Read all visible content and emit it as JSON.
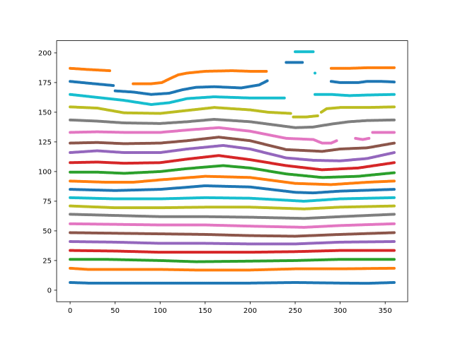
{
  "chart_data": {
    "type": "scatter",
    "title": "",
    "xlabel": "",
    "ylabel": "",
    "xlim": [
      -15,
      375
    ],
    "ylim": [
      -9.7,
      210.3
    ],
    "xticks": [
      0,
      50,
      100,
      150,
      200,
      250,
      300,
      350
    ],
    "xtick_labels": [
      "0",
      "50",
      "100",
      "150",
      "200",
      "250",
      "300",
      "350"
    ],
    "yticks": [
      0,
      25,
      50,
      75,
      100,
      125,
      150,
      175,
      200
    ],
    "ytick_labels": [
      "0",
      "25",
      "50",
      "75",
      "100",
      "125",
      "150",
      "175",
      "200"
    ],
    "grid": false,
    "legend": false,
    "series": [
      {
        "color": "#1f77b4",
        "points": [
          [
            0,
            6.5
          ],
          [
            20,
            6
          ],
          [
            50,
            6
          ],
          [
            100,
            6
          ],
          [
            150,
            6
          ],
          [
            200,
            6
          ],
          [
            250,
            6.5
          ],
          [
            300,
            6
          ],
          [
            330,
            5.8
          ],
          [
            360,
            6.5
          ]
        ]
      },
      {
        "color": "#ff7f0e",
        "points": [
          [
            0,
            18.5
          ],
          [
            20,
            17.5
          ],
          [
            50,
            17.5
          ],
          [
            100,
            17.5
          ],
          [
            140,
            17
          ],
          [
            200,
            17
          ],
          [
            250,
            18
          ],
          [
            300,
            18
          ],
          [
            360,
            18.5
          ]
        ]
      },
      {
        "color": "#2ca02c",
        "points": [
          [
            0,
            26
          ],
          [
            40,
            26
          ],
          [
            100,
            25
          ],
          [
            140,
            24
          ],
          [
            200,
            24.5
          ],
          [
            250,
            25
          ],
          [
            300,
            26
          ],
          [
            360,
            26
          ]
        ]
      },
      {
        "color": "#d62728",
        "points": [
          [
            0,
            33.5
          ],
          [
            50,
            33
          ],
          [
            100,
            32
          ],
          [
            150,
            32
          ],
          [
            200,
            32
          ],
          [
            250,
            32.5
          ],
          [
            300,
            33.5
          ],
          [
            360,
            33.5
          ]
        ]
      },
      {
        "color": "#9467bd",
        "points": [
          [
            0,
            41
          ],
          [
            50,
            40.5
          ],
          [
            100,
            39.5
          ],
          [
            150,
            39.5
          ],
          [
            200,
            39
          ],
          [
            250,
            39
          ],
          [
            300,
            40.5
          ],
          [
            360,
            41
          ]
        ]
      },
      {
        "color": "#8c564b",
        "points": [
          [
            0,
            48.5
          ],
          [
            50,
            48
          ],
          [
            100,
            47.5
          ],
          [
            150,
            47
          ],
          [
            200,
            46
          ],
          [
            250,
            45.5
          ],
          [
            300,
            47
          ],
          [
            360,
            48.5
          ]
        ]
      },
      {
        "color": "#e377c2",
        "points": [
          [
            0,
            56
          ],
          [
            50,
            55.5
          ],
          [
            100,
            55
          ],
          [
            150,
            55
          ],
          [
            200,
            54
          ],
          [
            260,
            53
          ],
          [
            300,
            54.5
          ],
          [
            360,
            56
          ]
        ]
      },
      {
        "color": "#7f7f7f",
        "points": [
          [
            0,
            64
          ],
          [
            50,
            63
          ],
          [
            100,
            62
          ],
          [
            150,
            62
          ],
          [
            200,
            61.5
          ],
          [
            260,
            60.5
          ],
          [
            300,
            62
          ],
          [
            360,
            64
          ]
        ]
      },
      {
        "color": "#bcbd22",
        "points": [
          [
            0,
            71
          ],
          [
            50,
            69.5
          ],
          [
            100,
            69.5
          ],
          [
            150,
            70
          ],
          [
            200,
            70
          ],
          [
            260,
            68.5
          ],
          [
            300,
            70
          ],
          [
            360,
            71
          ]
        ]
      },
      {
        "color": "#17becf",
        "points": [
          [
            0,
            78
          ],
          [
            50,
            77
          ],
          [
            100,
            77
          ],
          [
            150,
            78
          ],
          [
            200,
            77.5
          ],
          [
            260,
            75
          ],
          [
            300,
            77
          ],
          [
            360,
            78
          ]
        ]
      },
      {
        "color": "#1f77b4",
        "points": [
          [
            0,
            85
          ],
          [
            50,
            84
          ],
          [
            100,
            85
          ],
          [
            150,
            88
          ],
          [
            200,
            87
          ],
          [
            250,
            82.5
          ],
          [
            270,
            82
          ],
          [
            300,
            83.5
          ],
          [
            360,
            85
          ]
        ]
      },
      {
        "color": "#ff7f0e",
        "points": [
          [
            0,
            92
          ],
          [
            40,
            91
          ],
          [
            70,
            91
          ],
          [
            100,
            93
          ],
          [
            150,
            96
          ],
          [
            200,
            95
          ],
          [
            250,
            90
          ],
          [
            290,
            89
          ],
          [
            330,
            91
          ],
          [
            360,
            92
          ]
        ]
      },
      {
        "color": "#2ca02c",
        "points": [
          [
            0,
            99.5
          ],
          [
            30,
            99.5
          ],
          [
            60,
            98.5
          ],
          [
            100,
            100
          ],
          [
            130,
            102.5
          ],
          [
            170,
            105
          ],
          [
            200,
            103
          ],
          [
            240,
            98
          ],
          [
            280,
            95
          ],
          [
            320,
            96
          ],
          [
            360,
            99
          ]
        ]
      },
      {
        "color": "#d62728",
        "points": [
          [
            0,
            107.5
          ],
          [
            30,
            108
          ],
          [
            60,
            107
          ],
          [
            100,
            107.5
          ],
          [
            130,
            110.5
          ],
          [
            165,
            113.5
          ],
          [
            200,
            110
          ],
          [
            240,
            105
          ],
          [
            280,
            101.5
          ],
          [
            320,
            103
          ],
          [
            360,
            107.5
          ]
        ]
      },
      {
        "color": "#9467bd",
        "points": [
          [
            0,
            116
          ],
          [
            30,
            117.5
          ],
          [
            60,
            116
          ],
          [
            100,
            116
          ],
          [
            130,
            119
          ],
          [
            170,
            122
          ],
          [
            200,
            119
          ],
          [
            240,
            111.5
          ],
          [
            270,
            109.5
          ],
          [
            300,
            109
          ],
          [
            330,
            111
          ],
          [
            360,
            116
          ]
        ]
      },
      {
        "color": "#8c564b",
        "points": [
          [
            0,
            124
          ],
          [
            30,
            124.5
          ],
          [
            60,
            123.5
          ],
          [
            100,
            124
          ],
          [
            130,
            126
          ],
          [
            165,
            129
          ],
          [
            200,
            126
          ],
          [
            240,
            118.5
          ],
          [
            280,
            117
          ],
          [
            300,
            119
          ],
          [
            330,
            120
          ],
          [
            360,
            124
          ]
        ]
      },
      {
        "color": "#e377c2",
        "points": [
          [
            0,
            133
          ],
          [
            30,
            133.5
          ],
          [
            60,
            133
          ],
          [
            100,
            133
          ],
          [
            130,
            135
          ],
          [
            165,
            137
          ],
          [
            200,
            134
          ],
          [
            240,
            128
          ],
          [
            270,
            127
          ],
          [
            280,
            124
          ],
          [
            290,
            124
          ],
          [
            296,
            126
          ]
        ]
      },
      {
        "color": "#e377c2",
        "points": [
          [
            317,
            128
          ],
          [
            325,
            127
          ],
          [
            332,
            128
          ]
        ]
      },
      {
        "color": "#e377c2",
        "points": [
          [
            336,
            133
          ],
          [
            350,
            133
          ],
          [
            360,
            133
          ]
        ]
      },
      {
        "color": "#7f7f7f",
        "points": [
          [
            0,
            143.5
          ],
          [
            30,
            142.5
          ],
          [
            60,
            141
          ],
          [
            100,
            140.5
          ],
          [
            130,
            142
          ],
          [
            160,
            144
          ],
          [
            200,
            142
          ],
          [
            230,
            139
          ],
          [
            250,
            137
          ],
          [
            270,
            137.5
          ],
          [
            290,
            140
          ],
          [
            310,
            142
          ],
          [
            330,
            143
          ],
          [
            360,
            143.5
          ]
        ]
      },
      {
        "color": "#bcbd22",
        "points": [
          [
            0,
            154.5
          ],
          [
            30,
            153.5
          ],
          [
            60,
            149.5
          ],
          [
            100,
            149
          ],
          [
            130,
            151.5
          ],
          [
            160,
            154
          ],
          [
            200,
            152
          ],
          [
            220,
            150
          ],
          [
            245,
            149
          ]
        ]
      },
      {
        "color": "#bcbd22",
        "points": [
          [
            248,
            146
          ],
          [
            262,
            146
          ],
          [
            275,
            147
          ]
        ]
      },
      {
        "color": "#bcbd22",
        "points": [
          [
            279,
            150
          ],
          [
            285,
            153
          ],
          [
            300,
            154
          ],
          [
            330,
            154
          ],
          [
            360,
            154.5
          ]
        ]
      },
      {
        "color": "#17becf",
        "points": [
          [
            0,
            165
          ],
          [
            30,
            162.5
          ],
          [
            60,
            160
          ],
          [
            90,
            156.5
          ],
          [
            110,
            158
          ],
          [
            130,
            161.5
          ],
          [
            160,
            163
          ],
          [
            200,
            162
          ],
          [
            238,
            162
          ]
        ]
      },
      {
        "color": "#17becf",
        "points": [
          [
            272,
            165
          ],
          [
            290,
            165
          ],
          [
            310,
            164
          ],
          [
            330,
            164.5
          ],
          [
            360,
            165
          ]
        ]
      },
      {
        "color": "#1f77b4",
        "points": [
          [
            0,
            176
          ],
          [
            20,
            174.5
          ],
          [
            48,
            172.5
          ]
        ]
      },
      {
        "color": "#1f77b4",
        "points": [
          [
            50,
            168
          ],
          [
            70,
            167
          ],
          [
            90,
            165
          ],
          [
            110,
            166
          ],
          [
            125,
            169
          ],
          [
            140,
            171
          ],
          [
            160,
            171.5
          ],
          [
            190,
            170.5
          ],
          [
            210,
            173
          ],
          [
            219,
            176.5
          ]
        ]
      },
      {
        "color": "#1f77b4",
        "points": [
          [
            240,
            192
          ],
          [
            258,
            192
          ]
        ]
      },
      {
        "color": "#1f77b4",
        "points": [
          [
            290,
            176
          ],
          [
            300,
            175
          ],
          [
            320,
            175
          ],
          [
            330,
            176
          ],
          [
            345,
            176
          ],
          [
            360,
            175.5
          ]
        ]
      },
      {
        "color": "#ff7f0e",
        "points": [
          [
            0,
            187
          ],
          [
            20,
            186
          ],
          [
            44,
            185
          ]
        ]
      },
      {
        "color": "#ff7f0e",
        "points": [
          [
            70,
            174
          ],
          [
            90,
            174
          ],
          [
            102,
            175
          ],
          [
            110,
            178
          ],
          [
            120,
            181.5
          ],
          [
            130,
            183
          ],
          [
            150,
            184.5
          ],
          [
            180,
            185
          ],
          [
            200,
            184.5
          ],
          [
            218,
            184.5
          ]
        ]
      },
      {
        "color": "#ff7f0e",
        "points": [
          [
            290,
            187
          ],
          [
            310,
            187
          ],
          [
            330,
            187.5
          ],
          [
            360,
            187.5
          ]
        ]
      },
      {
        "color": "#17becf",
        "points": [
          [
            250,
            201
          ],
          [
            270,
            201
          ]
        ]
      },
      {
        "color": "#17becf",
        "points": [
          [
            272,
            183
          ]
        ]
      }
    ]
  }
}
